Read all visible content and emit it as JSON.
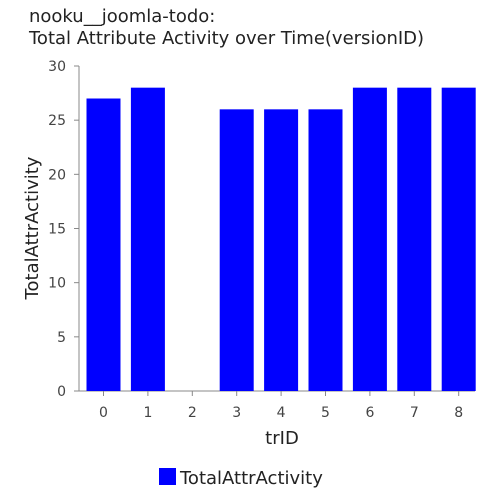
{
  "chart_data": {
    "type": "bar",
    "title_lines": [
      "nooku__joomla-todo:",
      "Total Attribute Activity over Time(versionID)"
    ],
    "xlabel": "trID",
    "ylabel": "TotalAttrActivity",
    "categories": [
      "0",
      "1",
      "2",
      "3",
      "4",
      "5",
      "6",
      "7",
      "8"
    ],
    "series": [
      {
        "name": "TotalAttrActivity",
        "values": [
          27,
          28,
          0,
          26,
          26,
          26,
          28,
          28,
          28
        ],
        "color": "#0000ff"
      }
    ],
    "ylim": [
      0,
      30
    ],
    "yticks": [
      "0",
      "5",
      "10",
      "15",
      "20",
      "25",
      "30"
    ],
    "grid": false,
    "legend": "bottom-center"
  }
}
